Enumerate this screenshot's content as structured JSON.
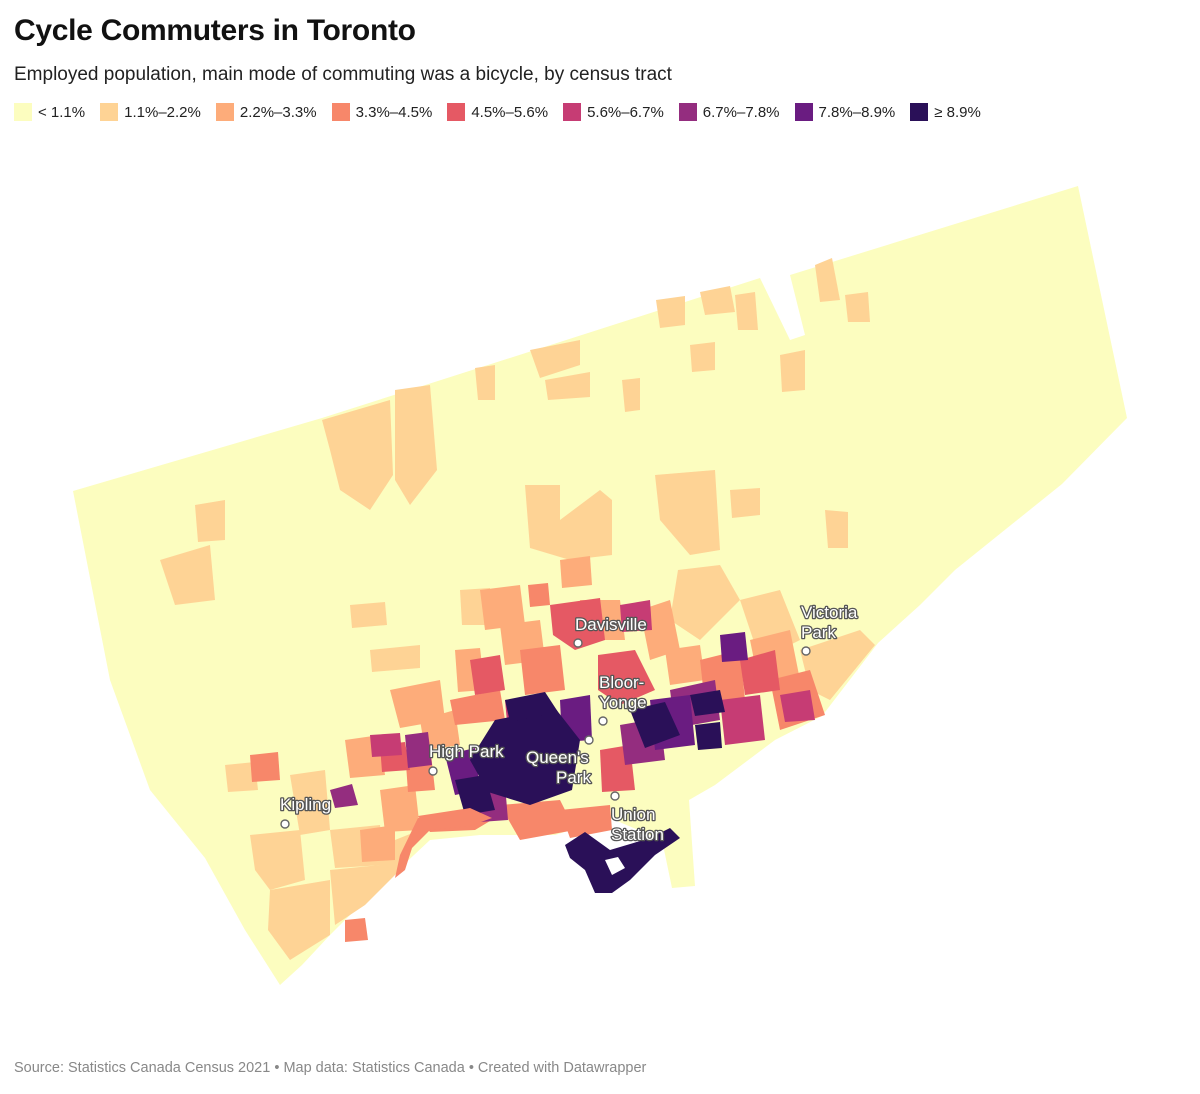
{
  "title": "Cycle Commuters in Toronto",
  "subtitle": "Employed population, main mode of commuting was a bicycle, by census tract",
  "legend": [
    {
      "label": "< 1.1%",
      "color": "#fcfdbf"
    },
    {
      "label": "1.1%–2.2%",
      "color": "#fed395"
    },
    {
      "label": "2.2%–3.3%",
      "color": "#fdac7a"
    },
    {
      "label": "3.3%–4.5%",
      "color": "#f7876a"
    },
    {
      "label": "4.5%–5.6%",
      "color": "#e55964"
    },
    {
      "label": "5.6%–6.7%",
      "color": "#c63c74"
    },
    {
      "label": "6.7%–7.8%",
      "color": "#942d7f"
    },
    {
      "label": "7.8%–8.9%",
      "color": "#6a1c81"
    },
    {
      "label": "≥ 8.9%",
      "color": "#2a1058"
    }
  ],
  "places": [
    {
      "name": "Davisville",
      "lines": [
        "Davisville"
      ]
    },
    {
      "name": "Victoria Park",
      "lines": [
        "Victoria",
        "Park"
      ]
    },
    {
      "name": "Bloor-Yonge",
      "lines": [
        "Bloor-",
        "Yonge"
      ]
    },
    {
      "name": "High Park",
      "lines": [
        "High Park"
      ]
    },
    {
      "name": "Queen's Park",
      "lines": [
        "Queen's",
        "Park"
      ]
    },
    {
      "name": "Kipling",
      "lines": [
        "Kipling"
      ]
    },
    {
      "name": "Union Station",
      "lines": [
        "Union",
        "Station"
      ]
    }
  ],
  "source": "Source: Statistics Canada Census 2021 • Map data: Statistics Canada • Created with Datawrapper"
}
